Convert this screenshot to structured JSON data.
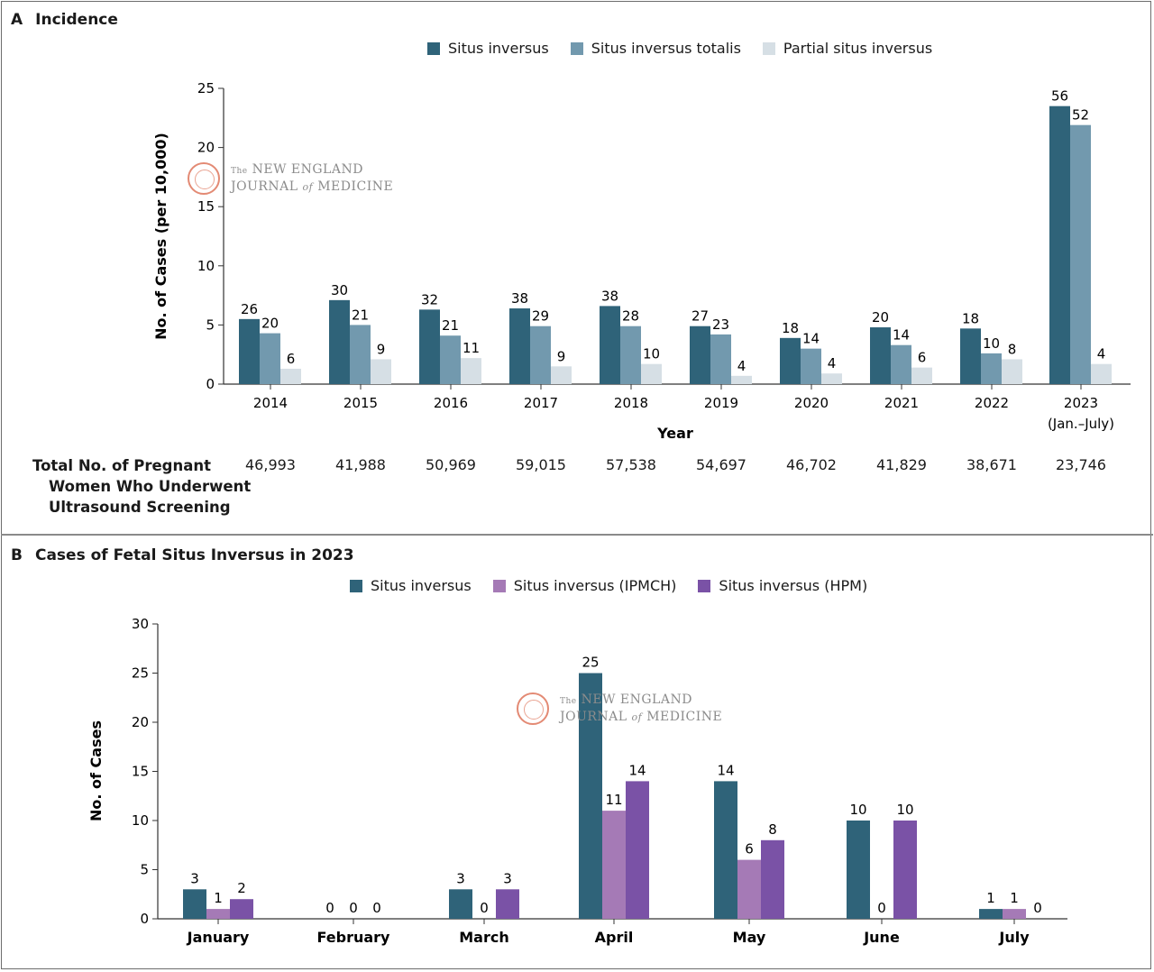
{
  "panel_a": {
    "letter": "A",
    "title": "Incidence",
    "legend": [
      {
        "label": "Situs inversus",
        "color": "#2f6379"
      },
      {
        "label": "Situs inversus totalis",
        "color": "#7299ae"
      },
      {
        "label": "Partial situs inversus",
        "color": "#d6dfe5"
      }
    ],
    "total_label_lines": [
      "Total No. of Pregnant",
      "Women Who Underwent",
      "Ultrasound Screening"
    ],
    "totals": [
      "46,993",
      "41,988",
      "50,969",
      "59,015",
      "57,538",
      "54,697",
      "46,702",
      "41,829",
      "38,671",
      "23,746"
    ]
  },
  "panel_b": {
    "letter": "B",
    "title": "Cases of Fetal Situs Inversus in 2023",
    "legend": [
      {
        "label": "Situs inversus",
        "color": "#2f6379"
      },
      {
        "label": "Situs inversus (IPMCH)",
        "color": "#a57ab6"
      },
      {
        "label": "Situs inversus (HPM)",
        "color": "#7a52a6"
      }
    ]
  },
  "watermark": {
    "line1_small": "The",
    "line1": "NEW ENGLAND",
    "line2a": "JOURNAL",
    "line2_small": "of",
    "line2b": "MEDICINE"
  },
  "chart_data": [
    {
      "type": "bar",
      "title": "Incidence",
      "xlabel": "Year",
      "ylabel": "No. of Cases (per 10,000)",
      "ylim": [
        0,
        25
      ],
      "yticks": [
        0,
        5,
        10,
        15,
        20,
        25
      ],
      "categories": [
        "2014",
        "2015",
        "2016",
        "2017",
        "2018",
        "2019",
        "2020",
        "2021",
        "2022",
        "2023"
      ],
      "category_sublabels": [
        "",
        "",
        "",
        "",
        "",
        "",
        "",
        "",
        "",
        "(Jan.–July)"
      ],
      "series": [
        {
          "name": "Situs inversus",
          "values": [
            5.5,
            7.1,
            6.3,
            6.4,
            6.6,
            4.9,
            3.9,
            4.8,
            4.7,
            23.5
          ],
          "labels": [
            "26",
            "30",
            "32",
            "38",
            "38",
            "27",
            "18",
            "20",
            "18",
            "56"
          ]
        },
        {
          "name": "Situs inversus totalis",
          "values": [
            4.3,
            5.0,
            4.1,
            4.9,
            4.9,
            4.2,
            3.0,
            3.3,
            2.6,
            21.9
          ],
          "labels": [
            "20",
            "21",
            "21",
            "29",
            "28",
            "23",
            "14",
            "14",
            "10",
            "52"
          ]
        },
        {
          "name": "Partial situs inversus",
          "values": [
            1.3,
            2.1,
            2.2,
            1.5,
            1.7,
            0.7,
            0.9,
            1.4,
            2.1,
            1.7
          ],
          "labels": [
            "6",
            "9",
            "11",
            "9",
            "10",
            "4",
            "4",
            "6",
            "8",
            "4"
          ]
        }
      ]
    },
    {
      "type": "bar",
      "title": "Cases of Fetal Situs Inversus in 2023",
      "xlabel": "",
      "ylabel": "No. of Cases",
      "ylim": [
        0,
        30
      ],
      "yticks": [
        0,
        5,
        10,
        15,
        20,
        25,
        30
      ],
      "categories": [
        "January",
        "February",
        "March",
        "April",
        "May",
        "June",
        "July"
      ],
      "series": [
        {
          "name": "Situs inversus",
          "values": [
            3,
            0,
            3,
            25,
            14,
            10,
            1
          ]
        },
        {
          "name": "Situs inversus (IPMCH)",
          "values": [
            1,
            0,
            0,
            11,
            6,
            0,
            1
          ]
        },
        {
          "name": "Situs inversus (HPM)",
          "values": [
            2,
            0,
            3,
            14,
            8,
            10,
            0
          ]
        }
      ]
    }
  ]
}
